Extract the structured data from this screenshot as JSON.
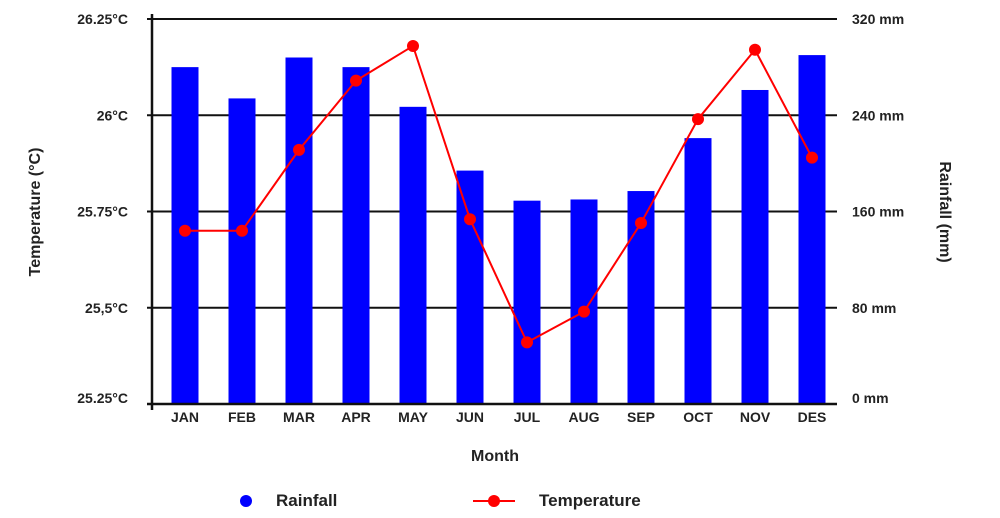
{
  "chart_data": {
    "type": "bar+line",
    "categories": [
      "JAN",
      "FEB",
      "MAR",
      "APR",
      "MAY",
      "JUN",
      "JUL",
      "AUG",
      "SEP",
      "OCT",
      "NOV",
      "DES"
    ],
    "series": [
      {
        "name": "Rainfall",
        "type": "bar",
        "axis": "right",
        "color": "#0000ff",
        "values": [
          280,
          254,
          288,
          280,
          247,
          194,
          169,
          170,
          177,
          221,
          261,
          290
        ]
      },
      {
        "name": "Temperature",
        "type": "line",
        "axis": "left",
        "color": "#ff0000",
        "values": [
          25.7,
          25.7,
          25.91,
          26.09,
          26.18,
          25.73,
          25.41,
          25.49,
          25.72,
          25.99,
          26.17,
          25.89
        ]
      }
    ],
    "xlabel": "Month",
    "ylabel_left": "Temperature (°C)",
    "ylabel_right": "Rainfall (mm)",
    "ylim_left": [
      25.25,
      26.25
    ],
    "ylim_right": [
      0,
      320
    ],
    "left_ticks": [
      {
        "value": 26.25,
        "label": "26.25°C"
      },
      {
        "value": 26.0,
        "label": "26°C"
      },
      {
        "value": 25.75,
        "label": "25.75°C"
      },
      {
        "value": 25.5,
        "label": "25,5°C"
      },
      {
        "value": 25.25,
        "label": "25.25°C"
      }
    ],
    "right_ticks": [
      {
        "value": 320,
        "label": "320 mm"
      },
      {
        "value": 240,
        "label": "240 mm"
      },
      {
        "value": 160,
        "label": "160 mm"
      },
      {
        "value": 80,
        "label": "80 mm"
      },
      {
        "value": 0,
        "label": "0 mm"
      }
    ],
    "grid": true,
    "legend": {
      "position": "bottom",
      "items": [
        {
          "label": "Rainfall",
          "marker": "dot",
          "color": "#0000ff"
        },
        {
          "label": "Temperature",
          "marker": "line-dot",
          "color": "#ff0000"
        }
      ]
    }
  }
}
